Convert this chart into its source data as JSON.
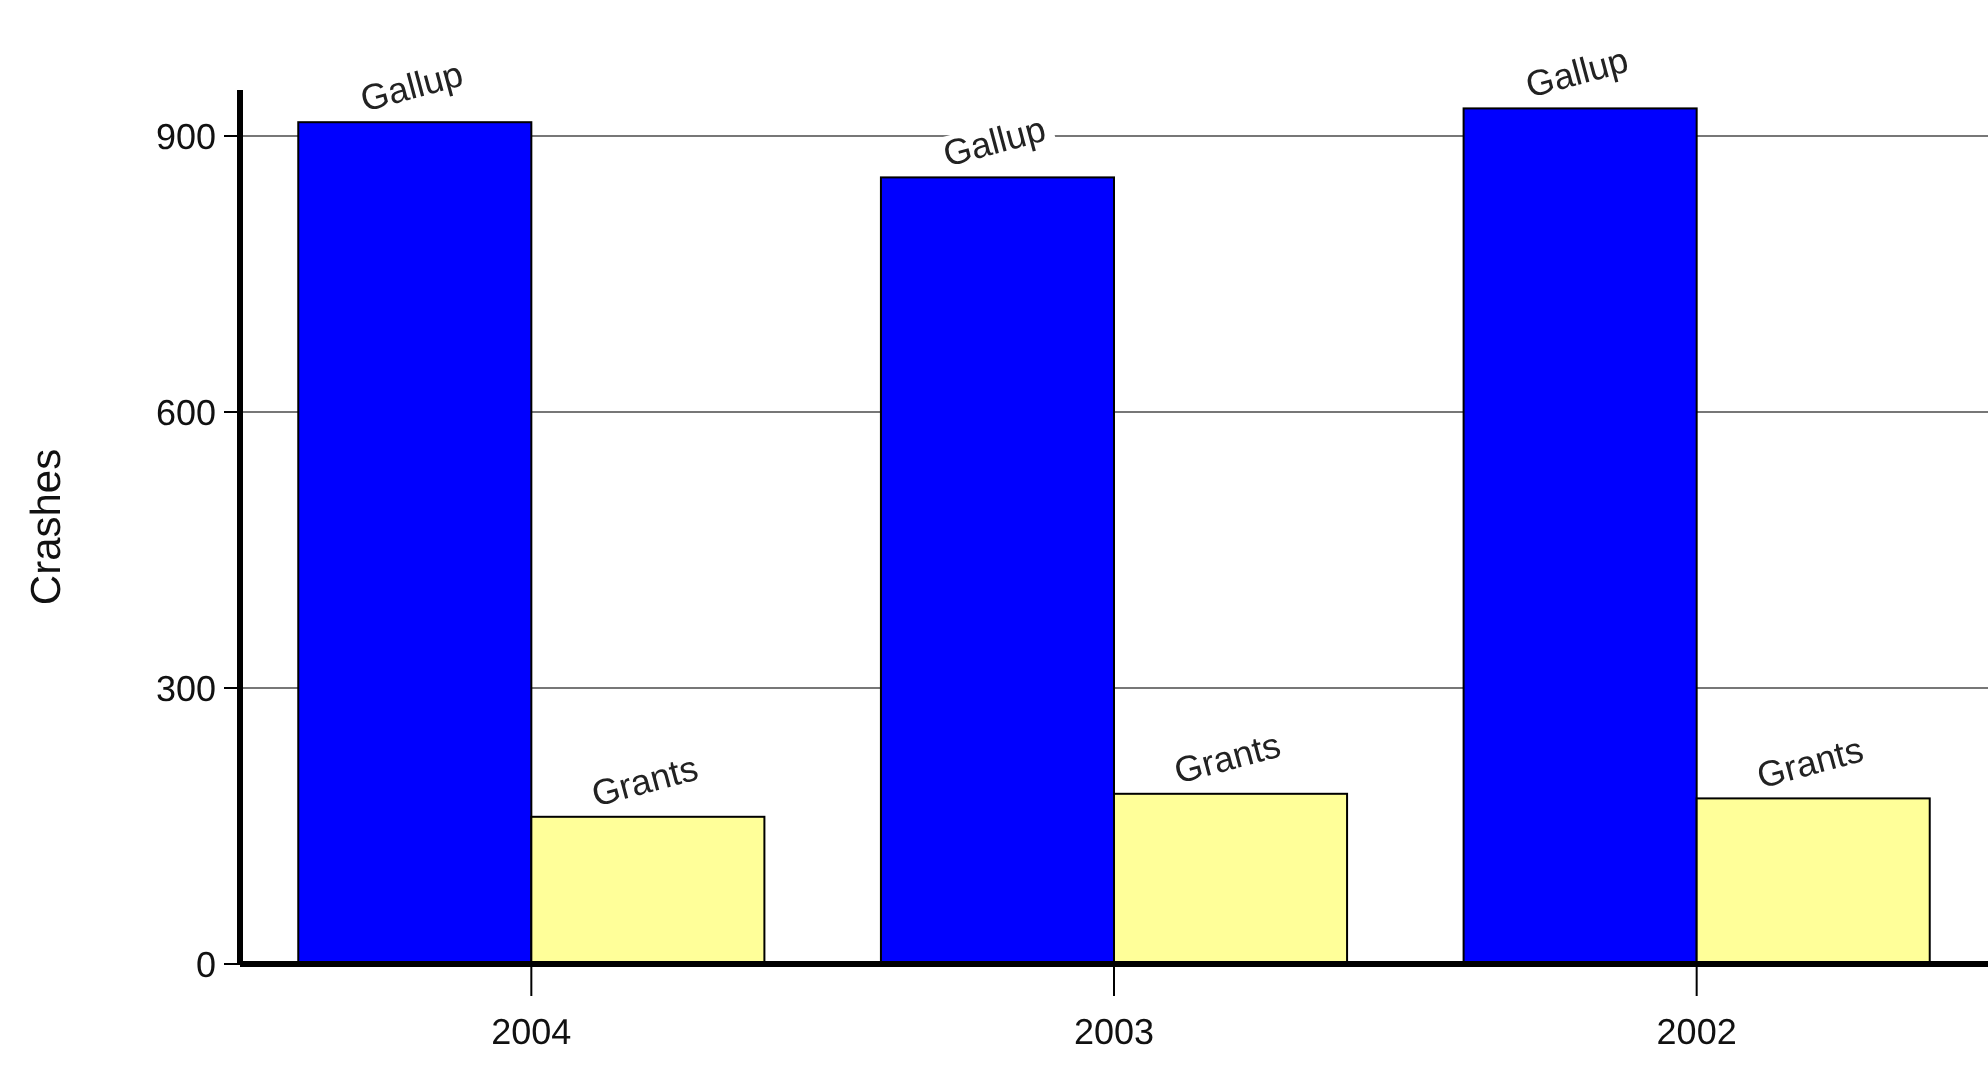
{
  "chart_data": {
    "type": "bar",
    "ylabel": "Crashes",
    "categories": [
      "2004",
      "2003",
      "2002"
    ],
    "series": [
      {
        "name": "Gallup",
        "color": "#0000ff",
        "values": [
          915,
          855,
          930
        ]
      },
      {
        "name": "Grants",
        "color": "#ffff99",
        "values": [
          160,
          185,
          180
        ]
      }
    ],
    "ylim": [
      0,
      950
    ],
    "yticks": [
      0,
      300,
      600,
      900
    ],
    "grid": "y"
  }
}
